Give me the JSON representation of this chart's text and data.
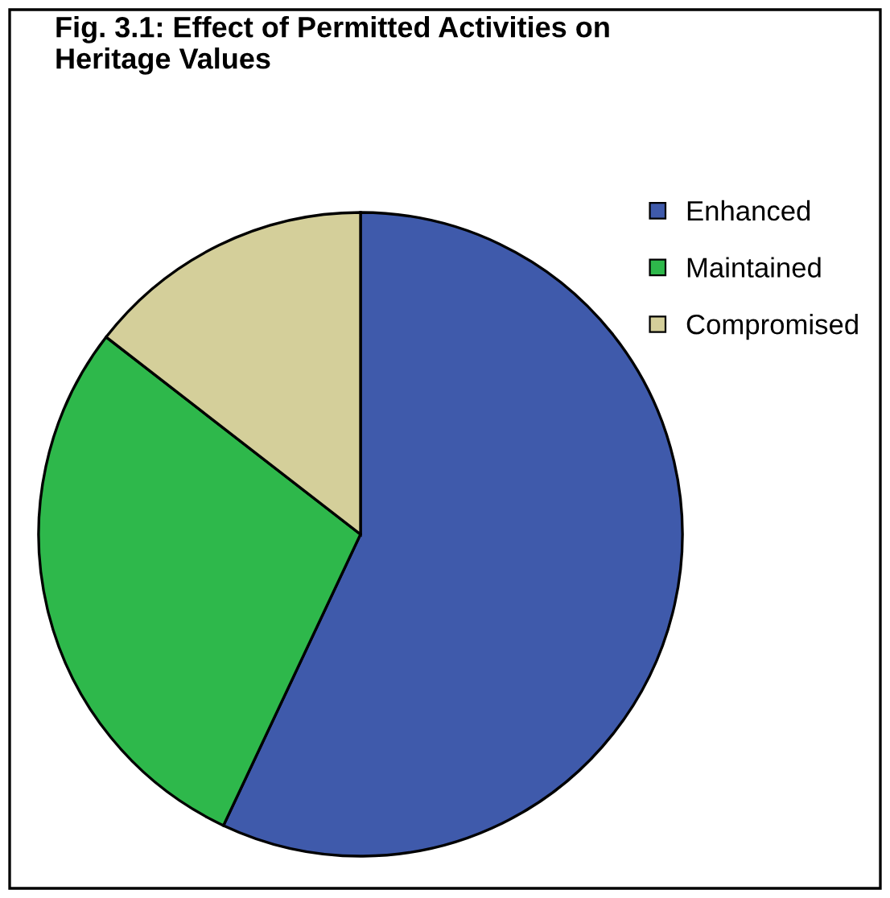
{
  "chart_data": {
    "type": "pie",
    "title": "Fig. 3.1: Effect of Permitted Activities on\nHeritage Values",
    "categories": [
      "Enhanced",
      "Maintained",
      "Compromised"
    ],
    "values": [
      57,
      28.5,
      14.5
    ],
    "colors": [
      "#3f5aab",
      "#2eb84b",
      "#d4cf9a"
    ],
    "legend": "top right"
  }
}
